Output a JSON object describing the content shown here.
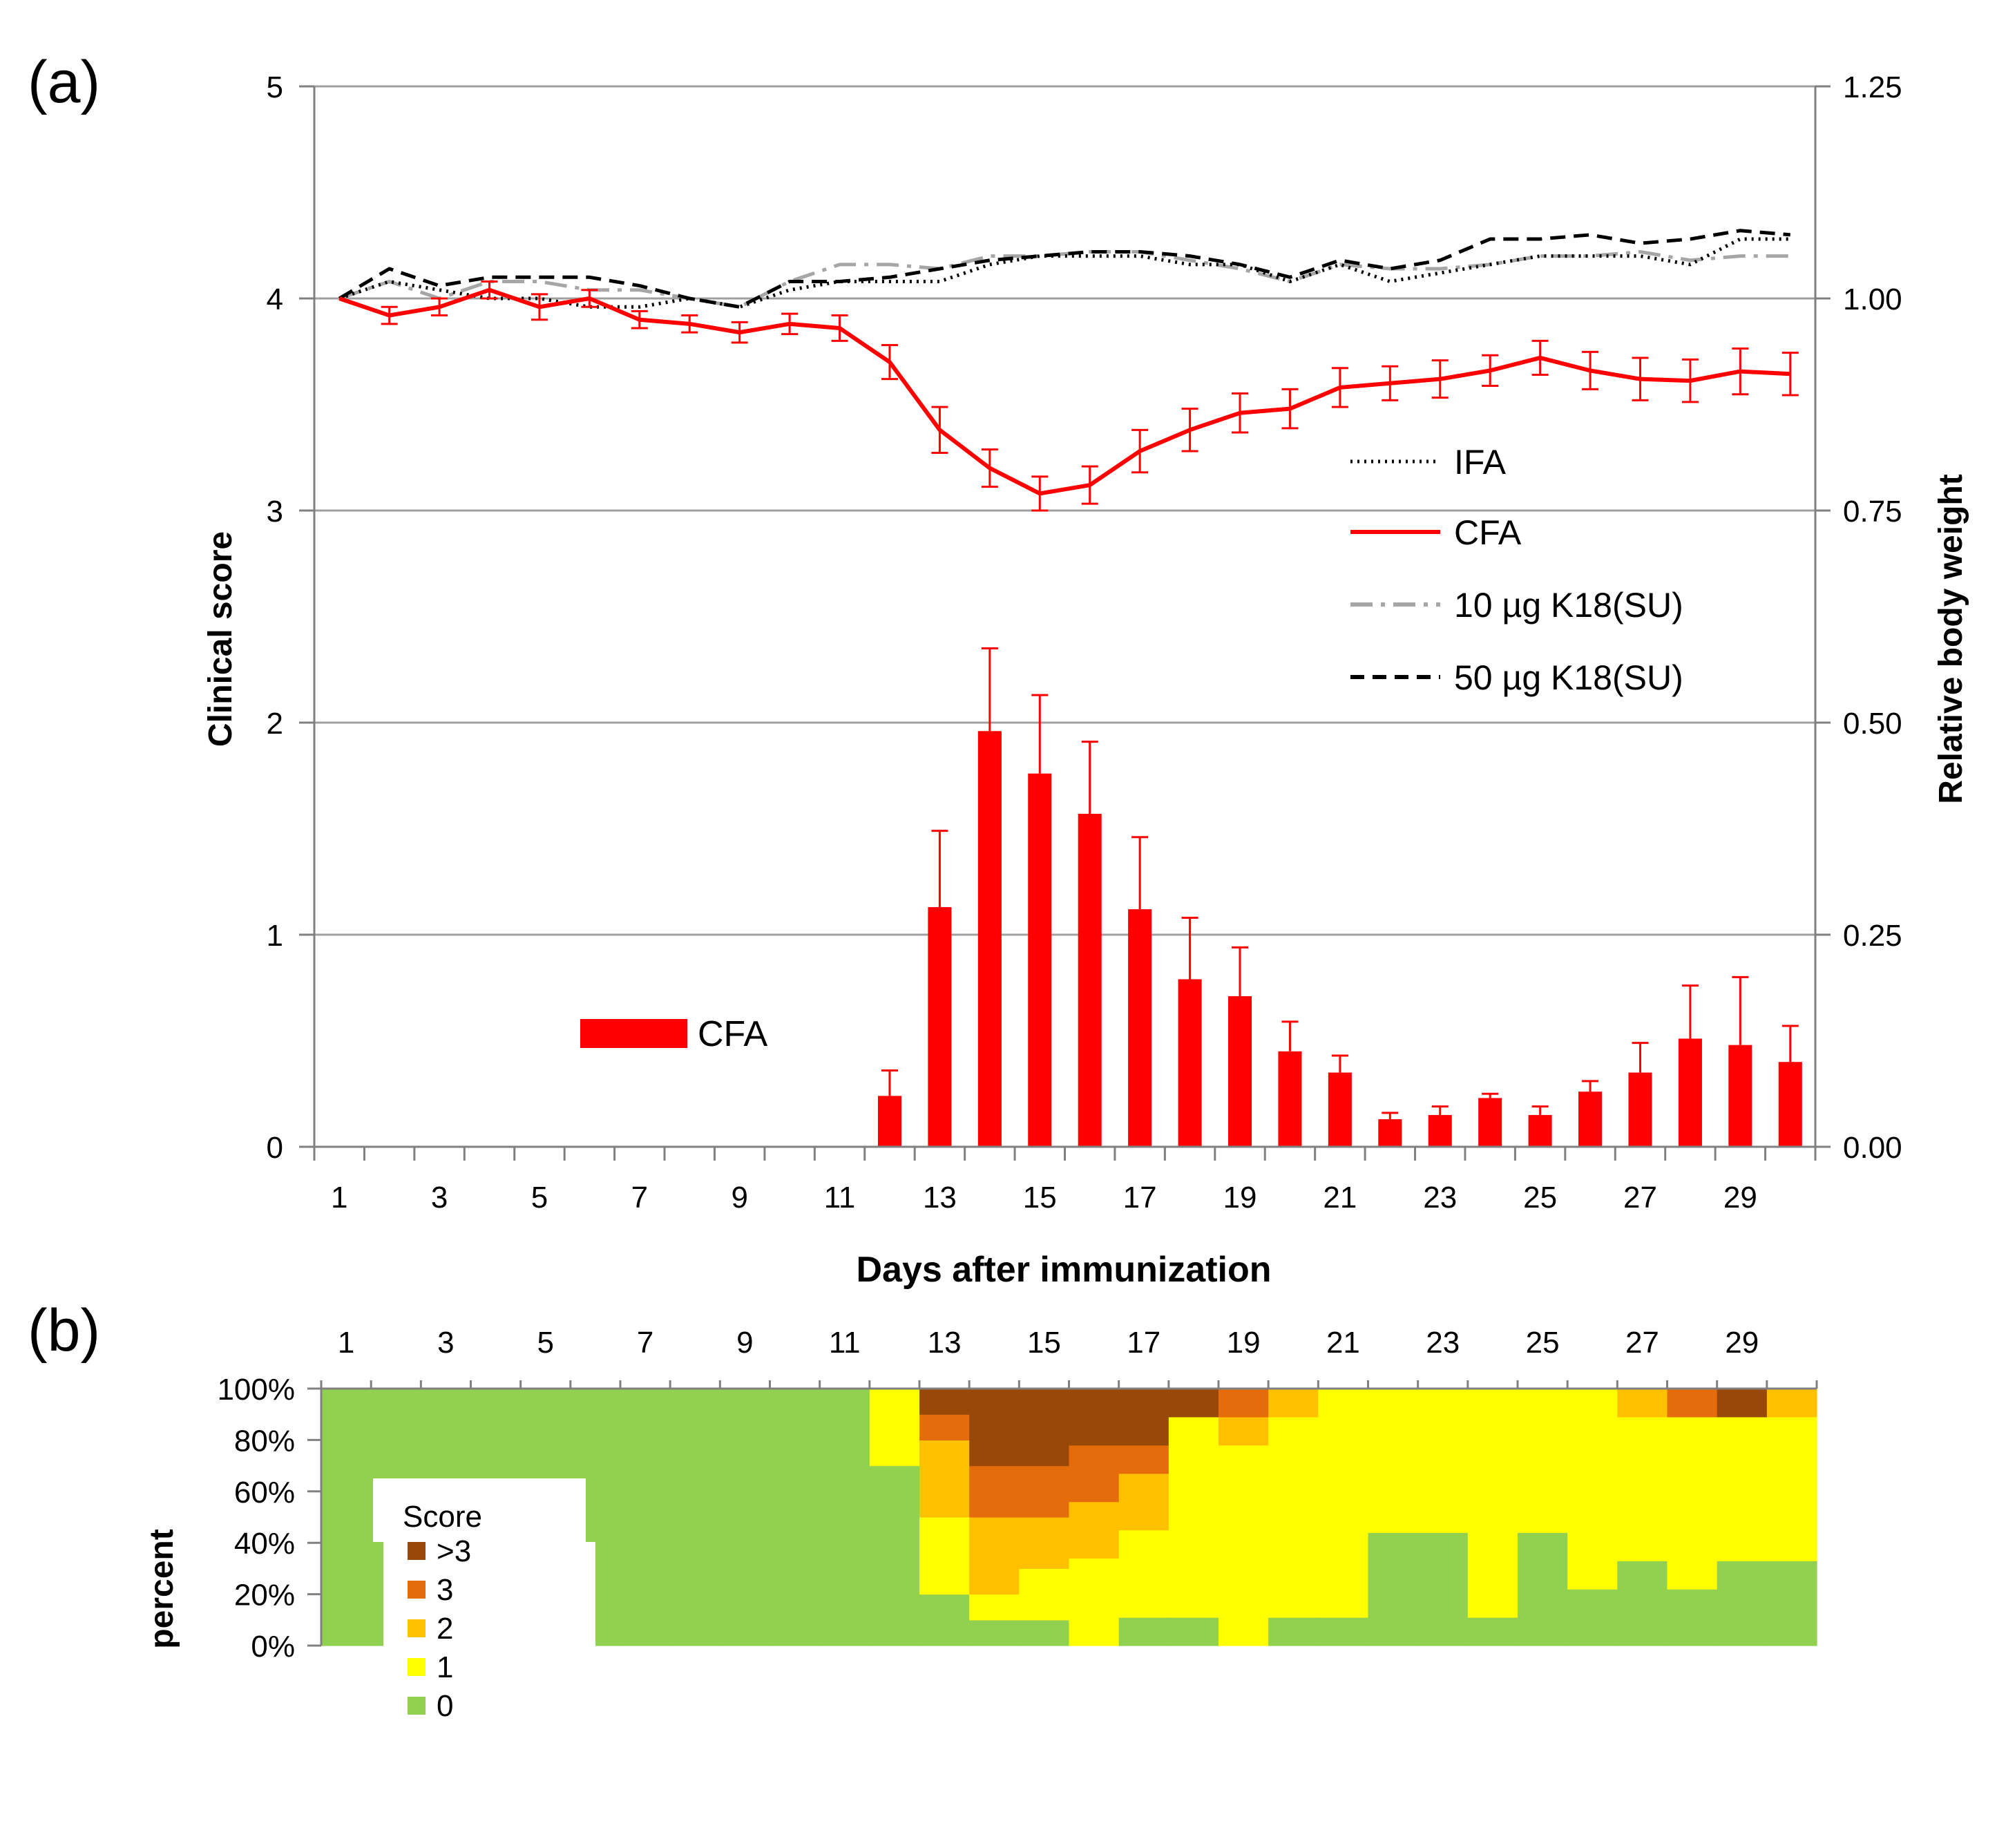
{
  "panel_a_label": "(a)",
  "panel_b_label": "(b)",
  "chart_data": [
    {
      "type": "bar",
      "panel": "(a)",
      "xlabel": "Days after immunization",
      "ylabel": "Clinical score",
      "y2label": "Relative body weight",
      "ylim": [
        0,
        5
      ],
      "y2lim": [
        0,
        1.25
      ],
      "yticks": [
        "0",
        "1",
        "2",
        "3",
        "4",
        "5"
      ],
      "y2ticks": [
        "0.00",
        "0.25",
        "0.50",
        "0.75",
        "1.00",
        "1.25"
      ],
      "x": [
        1,
        2,
        3,
        4,
        5,
        6,
        7,
        8,
        9,
        10,
        11,
        12,
        13,
        14,
        15,
        16,
        17,
        18,
        19,
        20,
        21,
        22,
        23,
        24,
        25,
        26,
        27,
        28,
        29,
        30
      ],
      "xticklabels": [
        "1",
        "3",
        "5",
        "7",
        "9",
        "11",
        "13",
        "15",
        "17",
        "19",
        "21",
        "23",
        "25",
        "27",
        "29"
      ],
      "grid": "horizontal",
      "bar_legend": "CFA",
      "line_legend_placement": "right-middle",
      "bars": {
        "name": "CFA",
        "color": "#ff0000",
        "values": [
          0,
          0,
          0,
          0,
          0,
          0,
          0,
          0,
          0,
          0,
          0,
          0.24,
          1.13,
          1.96,
          1.76,
          1.57,
          1.12,
          0.79,
          0.71,
          0.45,
          0.35,
          0.13,
          0.15,
          0.23,
          0.15,
          0.26,
          0.35,
          0.51,
          0.48,
          0.4
        ],
        "err": [
          0,
          0,
          0,
          0,
          0,
          0,
          0,
          0,
          0,
          0,
          0,
          0.12,
          0.36,
          0.39,
          0.37,
          0.34,
          0.34,
          0.29,
          0.23,
          0.14,
          0.08,
          0.03,
          0.04,
          0.02,
          0.04,
          0.05,
          0.14,
          0.25,
          0.32,
          0.17
        ]
      },
      "series": [
        {
          "name": "IFA",
          "axis": "right",
          "color": "#000000",
          "style": "dotted",
          "values": [
            1.0,
            1.02,
            1.01,
            1.0,
            1.0,
            0.99,
            0.99,
            1.0,
            0.99,
            1.01,
            1.02,
            1.02,
            1.02,
            1.04,
            1.05,
            1.05,
            1.05,
            1.04,
            1.04,
            1.02,
            1.04,
            1.02,
            1.03,
            1.04,
            1.05,
            1.05,
            1.05,
            1.04,
            1.07,
            1.07
          ]
        },
        {
          "name": "CFA",
          "axis": "right",
          "color": "#ff0000",
          "style": "solid",
          "values": [
            1.0,
            0.98,
            0.99,
            1.01,
            0.99,
            1.0,
            0.975,
            0.97,
            0.96,
            0.97,
            0.965,
            0.925,
            0.845,
            0.8,
            0.77,
            0.78,
            0.82,
            0.845,
            0.865,
            0.87,
            0.895,
            0.9,
            0.905,
            0.915,
            0.93,
            0.915,
            0.905,
            0.903,
            0.914,
            0.911
          ],
          "err": [
            0,
            0.01,
            0.01,
            0.01,
            0.015,
            0.01,
            0.01,
            0.01,
            0.012,
            0.012,
            0.015,
            0.02,
            0.027,
            0.022,
            0.02,
            0.022,
            0.025,
            0.025,
            0.023,
            0.023,
            0.023,
            0.02,
            0.022,
            0.018,
            0.02,
            0.022,
            0.025,
            0.025,
            0.027,
            0.025
          ]
        },
        {
          "name": "10 µg K18(SU)",
          "axis": "right",
          "color": "#a6a6a6",
          "style": "dashdot",
          "values": [
            1.0,
            1.02,
            1.0,
            1.02,
            1.02,
            1.01,
            1.01,
            1.0,
            0.99,
            1.02,
            1.04,
            1.04,
            1.035,
            1.05,
            1.05,
            1.055,
            1.055,
            1.045,
            1.035,
            1.02,
            1.04,
            1.035,
            1.035,
            1.04,
            1.05,
            1.05,
            1.055,
            1.045,
            1.05,
            1.05
          ]
        },
        {
          "name": "50 µg K18(SU)",
          "axis": "right",
          "color": "#000000",
          "style": "dashed",
          "values": [
            1.0,
            1.035,
            1.015,
            1.025,
            1.025,
            1.025,
            1.015,
            1.0,
            0.99,
            1.02,
            1.02,
            1.025,
            1.035,
            1.045,
            1.05,
            1.055,
            1.055,
            1.05,
            1.04,
            1.025,
            1.045,
            1.035,
            1.045,
            1.07,
            1.07,
            1.075,
            1.065,
            1.07,
            1.08,
            1.075
          ]
        }
      ]
    },
    {
      "type": "heatmap",
      "panel": "(b)",
      "ylabel": "percent",
      "yticks": [
        "0%",
        "20%",
        "40%",
        "60%",
        "80%",
        "100%"
      ],
      "xticklabels": [
        "1",
        "3",
        "5",
        "7",
        "9",
        "11",
        "13",
        "15",
        "17",
        "19",
        "21",
        "23",
        "25",
        "27",
        "29"
      ],
      "legend_title": "Score",
      "legend_placement": "left",
      "categories": [
        ">3",
        "3",
        "2",
        "1",
        "0"
      ],
      "colors": {
        "0": "#92d050",
        "1": "#ffff00",
        "2": "#ffc000",
        "3": "#e46c0a",
        ">3": "#984807"
      },
      "x": [
        1,
        2,
        3,
        4,
        5,
        6,
        7,
        8,
        9,
        10,
        11,
        12,
        13,
        14,
        15,
        16,
        17,
        18,
        19,
        20,
        21,
        22,
        23,
        24,
        25,
        26,
        27,
        28,
        29,
        30
      ],
      "series": [
        {
          "name": "0",
          "values": [
            100,
            100,
            100,
            100,
            100,
            100,
            100,
            100,
            100,
            100,
            100,
            70,
            20,
            10,
            10,
            0,
            11,
            11,
            0,
            11,
            11,
            44,
            44,
            11,
            44,
            22,
            33,
            22,
            33,
            33
          ]
        },
        {
          "name": "1",
          "values": [
            0,
            0,
            0,
            0,
            0,
            0,
            0,
            0,
            0,
            0,
            0,
            30,
            30,
            10,
            20,
            34,
            34,
            78,
            78,
            78,
            89,
            56,
            56,
            89,
            56,
            78,
            56,
            67,
            56,
            56
          ]
        },
        {
          "name": "2",
          "values": [
            0,
            0,
            0,
            0,
            0,
            0,
            0,
            0,
            0,
            0,
            0,
            0,
            30,
            30,
            20,
            22,
            22,
            0,
            11,
            11,
            0,
            0,
            0,
            0,
            0,
            0,
            11,
            0,
            0,
            11
          ]
        },
        {
          "name": "3",
          "values": [
            0,
            0,
            0,
            0,
            0,
            0,
            0,
            0,
            0,
            0,
            0,
            0,
            10,
            20,
            20,
            22,
            11,
            0,
            11,
            0,
            0,
            0,
            0,
            0,
            0,
            0,
            0,
            11,
            0,
            0
          ]
        },
        {
          "name": ">3",
          "values": [
            0,
            0,
            0,
            0,
            0,
            0,
            0,
            0,
            0,
            0,
            0,
            0,
            10,
            30,
            30,
            22,
            22,
            11,
            0,
            0,
            0,
            0,
            0,
            0,
            0,
            0,
            0,
            0,
            11,
            0
          ]
        }
      ]
    }
  ]
}
